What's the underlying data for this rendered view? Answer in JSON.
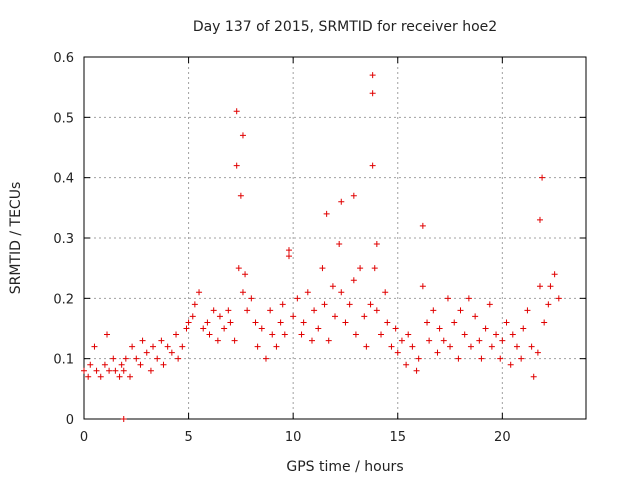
{
  "chart_data": {
    "type": "scatter",
    "title": "Day 137 of 2015, SRMTID for receiver hoe2",
    "xlabel": "GPS time / hours",
    "ylabel": "SRMTID / TECUs",
    "xlim": [
      0,
      24
    ],
    "ylim": [
      0,
      0.6
    ],
    "xticks": [
      0,
      5,
      10,
      15,
      20
    ],
    "yticks": [
      0,
      0.1,
      0.2,
      0.3,
      0.4,
      0.5,
      0.6
    ],
    "xtick_labels": [
      "0",
      "5",
      "10",
      "15",
      "20"
    ],
    "ytick_labels": [
      "0",
      "0.1",
      "0.2",
      "0.3",
      "0.4",
      "0.5",
      "0.6"
    ],
    "grid": true,
    "marker": "+",
    "marker_color": "#e00000",
    "series": [
      {
        "name": "hoe2",
        "x": [
          0.0,
          0.2,
          0.3,
          0.5,
          0.6,
          0.8,
          1.0,
          1.1,
          1.2,
          1.4,
          1.5,
          1.7,
          1.8,
          1.9,
          2.0,
          2.2,
          2.3,
          2.5,
          2.7,
          2.8,
          3.0,
          3.2,
          3.3,
          3.5,
          3.7,
          3.8,
          4.0,
          4.2,
          4.4,
          4.5,
          4.7,
          4.9,
          5.0,
          5.2,
          5.3,
          5.5,
          5.7,
          5.9,
          6.0,
          6.2,
          6.4,
          6.5,
          6.7,
          6.9,
          7.0,
          7.2,
          7.3,
          7.4,
          7.5,
          7.6,
          7.7,
          7.8,
          8.0,
          8.2,
          8.3,
          8.5,
          8.7,
          8.9,
          9.0,
          9.2,
          9.4,
          9.5,
          9.6,
          9.8,
          10.0,
          10.2,
          10.4,
          10.5,
          10.7,
          10.9,
          11.0,
          11.2,
          11.4,
          11.5,
          11.7,
          11.9,
          12.0,
          12.2,
          12.3,
          12.5,
          12.7,
          12.9,
          13.0,
          13.2,
          13.4,
          13.5,
          13.7,
          13.8,
          13.9,
          14.0,
          14.2,
          14.4,
          14.5,
          14.7,
          14.9,
          15.0,
          15.2,
          15.4,
          15.5,
          15.7,
          15.9,
          16.0,
          16.2,
          16.4,
          16.5,
          16.7,
          16.9,
          17.0,
          17.2,
          17.4,
          17.5,
          17.7,
          17.9,
          18.0,
          18.2,
          18.4,
          18.5,
          18.7,
          18.9,
          19.0,
          19.2,
          19.4,
          19.5,
          19.7,
          19.9,
          20.0,
          20.2,
          20.4,
          20.5,
          20.7,
          20.9,
          21.0,
          21.2,
          21.4,
          21.5,
          21.7,
          21.8,
          21.9,
          22.0,
          22.2,
          22.3,
          22.5,
          22.7,
          1.9,
          7.3,
          7.6,
          13.8,
          13.8,
          21.8,
          12.3,
          12.9,
          9.8,
          16.2,
          14.0,
          11.6
        ],
        "y": [
          0.08,
          0.07,
          0.09,
          0.12,
          0.08,
          0.07,
          0.09,
          0.14,
          0.08,
          0.1,
          0.08,
          0.07,
          0.09,
          0.08,
          0.1,
          0.07,
          0.12,
          0.1,
          0.09,
          0.13,
          0.11,
          0.08,
          0.12,
          0.1,
          0.13,
          0.09,
          0.12,
          0.11,
          0.14,
          0.1,
          0.12,
          0.15,
          0.16,
          0.17,
          0.19,
          0.21,
          0.15,
          0.16,
          0.14,
          0.18,
          0.13,
          0.17,
          0.15,
          0.18,
          0.16,
          0.13,
          0.42,
          0.25,
          0.37,
          0.21,
          0.24,
          0.18,
          0.2,
          0.16,
          0.12,
          0.15,
          0.1,
          0.18,
          0.14,
          0.12,
          0.16,
          0.19,
          0.14,
          0.27,
          0.17,
          0.2,
          0.14,
          0.16,
          0.21,
          0.13,
          0.18,
          0.15,
          0.25,
          0.19,
          0.13,
          0.22,
          0.17,
          0.29,
          0.21,
          0.16,
          0.19,
          0.23,
          0.14,
          0.25,
          0.17,
          0.12,
          0.19,
          0.54,
          0.25,
          0.18,
          0.14,
          0.21,
          0.16,
          0.12,
          0.15,
          0.11,
          0.13,
          0.09,
          0.14,
          0.12,
          0.08,
          0.1,
          0.22,
          0.16,
          0.13,
          0.18,
          0.11,
          0.15,
          0.13,
          0.2,
          0.12,
          0.16,
          0.1,
          0.18,
          0.14,
          0.2,
          0.12,
          0.17,
          0.13,
          0.1,
          0.15,
          0.19,
          0.12,
          0.14,
          0.1,
          0.13,
          0.16,
          0.09,
          0.14,
          0.12,
          0.1,
          0.15,
          0.18,
          0.12,
          0.07,
          0.11,
          0.22,
          0.4,
          0.16,
          0.19,
          0.22,
          0.24,
          0.2,
          0.0,
          0.51,
          0.47,
          0.57,
          0.42,
          0.33,
          0.36,
          0.37,
          0.28,
          0.32,
          0.29,
          0.34
        ]
      }
    ]
  }
}
